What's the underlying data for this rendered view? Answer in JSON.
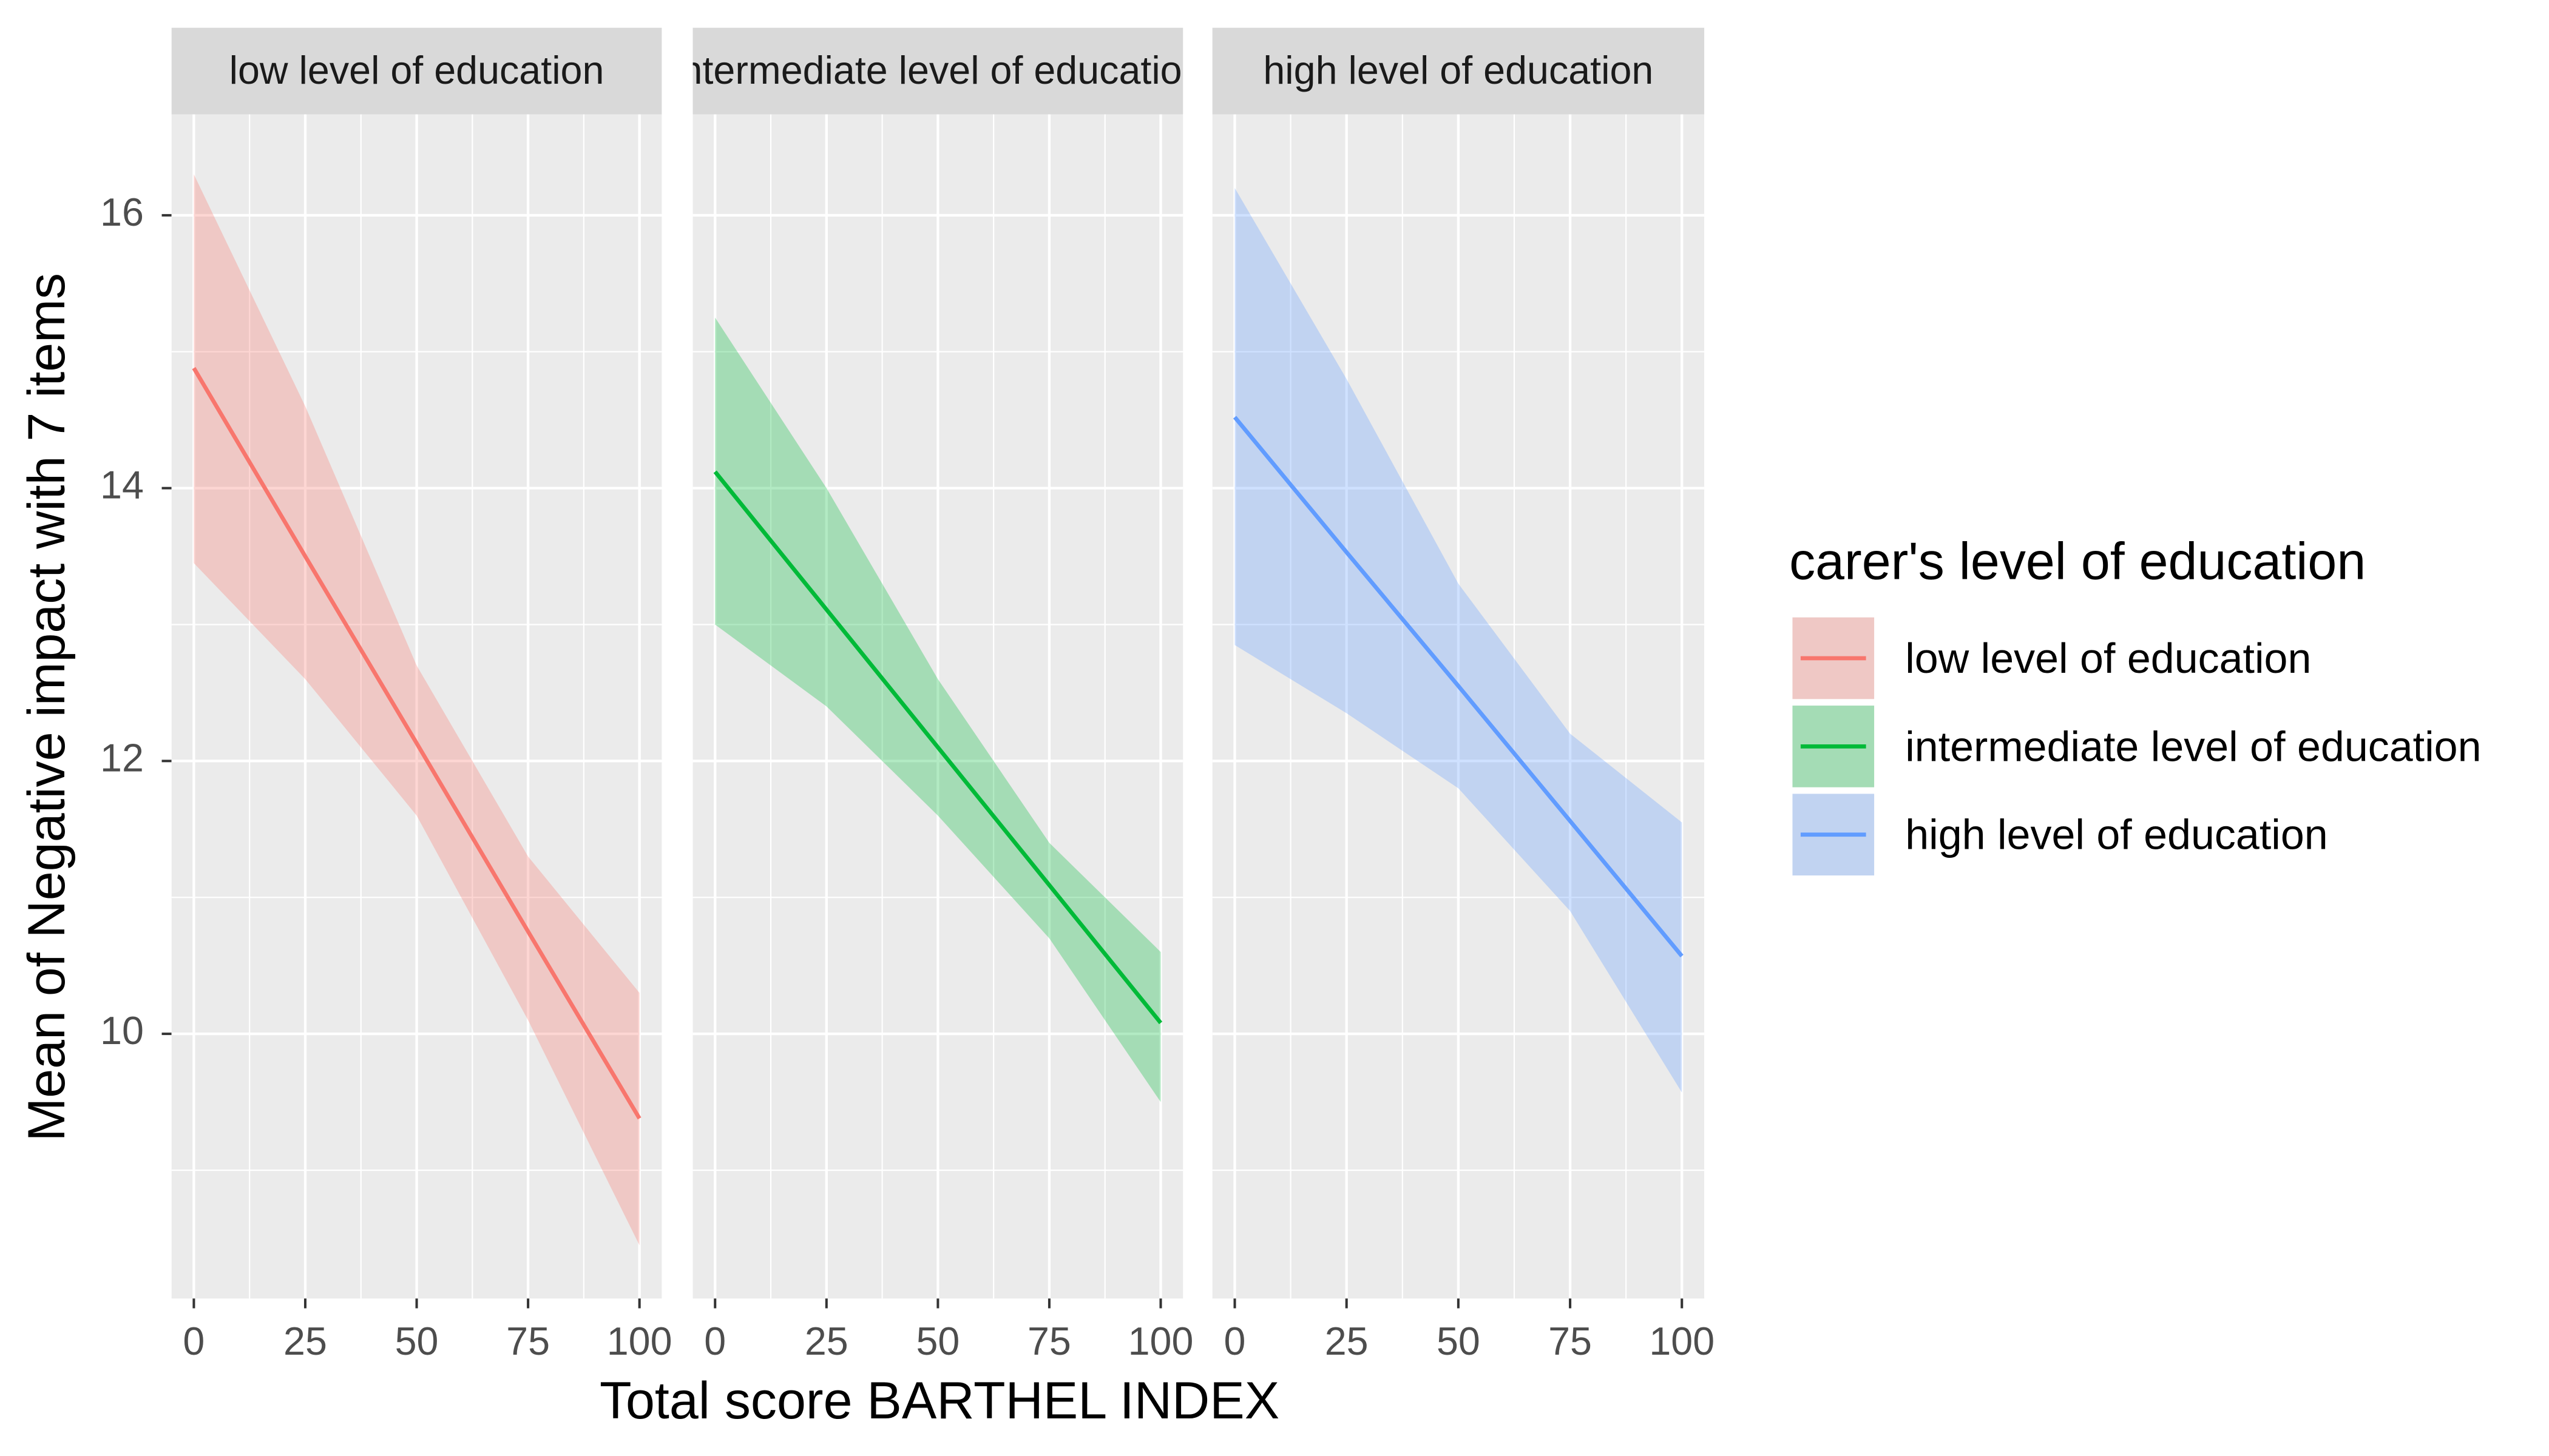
{
  "chart_data": {
    "type": "line",
    "x_label": "Total score BARTHEL INDEX",
    "y_label": "Mean of Negative impact with 7 items",
    "legend_title": "carer's level of education",
    "legend_position": "right",
    "grid": true,
    "ribbon_opacity": 0.3,
    "xlim": [
      -5,
      105
    ],
    "xticks": [
      0,
      25,
      50,
      75,
      100
    ],
    "ylim": [
      8.06,
      16.74
    ],
    "yticks": [
      10,
      12,
      14,
      16
    ],
    "x": [
      0,
      25,
      50,
      75,
      100
    ],
    "series": [
      {
        "name": "low level of education",
        "color": "#F8766D",
        "values": [
          14.88,
          13.5,
          12.13,
          10.75,
          9.38
        ],
        "upper": [
          16.3,
          14.6,
          12.7,
          11.3,
          10.3
        ],
        "lower": [
          13.45,
          12.6,
          11.6,
          10.1,
          8.45
        ]
      },
      {
        "name": "intermediate level of education",
        "color": "#00BA38",
        "values": [
          14.12,
          13.11,
          12.1,
          11.09,
          10.08
        ],
        "upper": [
          15.25,
          14.0,
          12.6,
          11.4,
          10.6
        ],
        "lower": [
          13.0,
          12.4,
          11.6,
          10.7,
          9.5
        ]
      },
      {
        "name": "high level of education",
        "color": "#619CFF",
        "values": [
          14.52,
          13.53,
          12.55,
          11.56,
          10.57
        ],
        "upper": [
          16.2,
          14.8,
          13.3,
          12.2,
          11.55
        ],
        "lower": [
          12.85,
          12.35,
          11.8,
          10.9,
          9.57
        ]
      }
    ]
  }
}
